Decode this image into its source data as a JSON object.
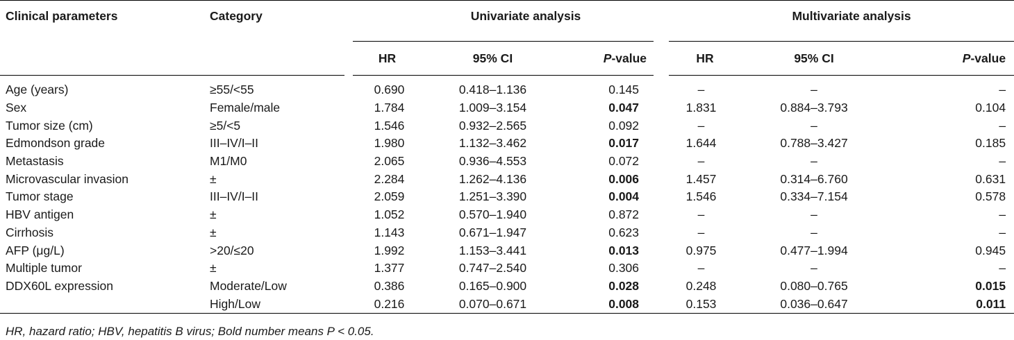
{
  "headers": {
    "clinical_parameters": "Clinical parameters",
    "category": "Category",
    "univariate": "Univariate analysis",
    "multivariate": "Multivariate analysis",
    "hr": "HR",
    "ci": "95% CI",
    "p_italic": "P",
    "p_rest": "-value"
  },
  "rows": [
    {
      "param": "Age (years)",
      "cat": "≥55/<55",
      "uhr": "0.690",
      "uci": "0.418–1.136",
      "up": "0.145",
      "up_bold": false,
      "mhr": "–",
      "mci": "–",
      "mp": "–",
      "mp_bold": false
    },
    {
      "param": "Sex",
      "cat": "Female/male",
      "uhr": "1.784",
      "uci": "1.009–3.154",
      "up": "0.047",
      "up_bold": true,
      "mhr": "1.831",
      "mci": "0.884–3.793",
      "mp": "0.104",
      "mp_bold": false
    },
    {
      "param": "Tumor size (cm)",
      "cat": "≥5/<5",
      "uhr": "1.546",
      "uci": "0.932–2.565",
      "up": "0.092",
      "up_bold": false,
      "mhr": "–",
      "mci": "–",
      "mp": "–",
      "mp_bold": false
    },
    {
      "param": "Edmondson grade",
      "cat": "III–IV/I–II",
      "uhr": "1.980",
      "uci": "1.132–3.462",
      "up": "0.017",
      "up_bold": true,
      "mhr": "1.644",
      "mci": "0.788–3.427",
      "mp": "0.185",
      "mp_bold": false
    },
    {
      "param": "Metastasis",
      "cat": "M1/M0",
      "uhr": "2.065",
      "uci": "0.936–4.553",
      "up": "0.072",
      "up_bold": false,
      "mhr": "–",
      "mci": "–",
      "mp": "–",
      "mp_bold": false
    },
    {
      "param": "Microvascular invasion",
      "cat": "±",
      "uhr": "2.284",
      "uci": "1.262–4.136",
      "up": "0.006",
      "up_bold": true,
      "mhr": "1.457",
      "mci": "0.314–6.760",
      "mp": "0.631",
      "mp_bold": false
    },
    {
      "param": "Tumor stage",
      "cat": "III–IV/I–II",
      "uhr": "2.059",
      "uci": "1.251–3.390",
      "up": "0.004",
      "up_bold": true,
      "mhr": "1.546",
      "mci": "0.334–7.154",
      "mp": "0.578",
      "mp_bold": false
    },
    {
      "param": "HBV antigen",
      "cat": "±",
      "uhr": "1.052",
      "uci": "0.570–1.940",
      "up": "0.872",
      "up_bold": false,
      "mhr": "–",
      "mci": "–",
      "mp": "–",
      "mp_bold": false
    },
    {
      "param": "Cirrhosis",
      "cat": "±",
      "uhr": "1.143",
      "uci": "0.671–1.947",
      "up": "0.623",
      "up_bold": false,
      "mhr": "–",
      "mci": "–",
      "mp": "–",
      "mp_bold": false
    },
    {
      "param": "AFP (μg/L)",
      "cat": ">20/≤20",
      "uhr": "1.992",
      "uci": "1.153–3.441",
      "up": "0.013",
      "up_bold": true,
      "mhr": "0.975",
      "mci": "0.477–1.994",
      "mp": "0.945",
      "mp_bold": false
    },
    {
      "param": "Multiple tumor",
      "cat": "±",
      "uhr": "1.377",
      "uci": "0.747–2.540",
      "up": "0.306",
      "up_bold": false,
      "mhr": "–",
      "mci": "–",
      "mp": "–",
      "mp_bold": false
    },
    {
      "param": "DDX60L expression",
      "cat": "Moderate/Low",
      "uhr": "0.386",
      "uci": "0.165–0.900",
      "up": "0.028",
      "up_bold": true,
      "mhr": "0.248",
      "mci": "0.080–0.765",
      "mp": "0.015",
      "mp_bold": true
    },
    {
      "param": "",
      "cat": "High/Low",
      "uhr": "0.216",
      "uci": "0.070–0.671",
      "up": "0.008",
      "up_bold": true,
      "mhr": "0.153",
      "mci": "0.036–0.647",
      "mp": "0.011",
      "mp_bold": true
    }
  ],
  "footnote": "HR, hazard ratio; HBV, hepatitis B virus; Bold number means P < 0.05."
}
